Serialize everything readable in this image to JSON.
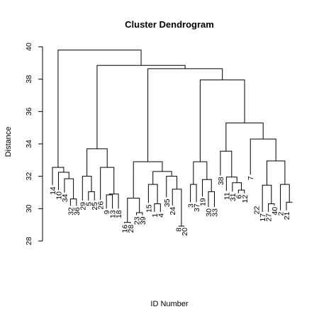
{
  "chart_data": {
    "type": "dendrogram",
    "title": "Cluster Dendrogram",
    "xlabel": "ID Number",
    "ylabel": "Distance",
    "ylim": [
      28,
      40
    ],
    "yticks": [
      28,
      30,
      32,
      34,
      36,
      38,
      40
    ],
    "ytick_labels": [
      "28",
      "30",
      "32",
      "34",
      "36",
      "38",
      "40"
    ],
    "leaf_order": [
      "14",
      "10",
      "34",
      "32",
      "36",
      "29",
      "5",
      "25",
      "26",
      "9",
      "13",
      "18",
      "16",
      "28",
      "23",
      "39",
      "15",
      "1",
      "4",
      "35",
      "24",
      "8",
      "20",
      "3",
      "37",
      "19",
      "30",
      "33",
      "38",
      "11",
      "31",
      "6",
      "12",
      "7",
      "22",
      "17",
      "27",
      "40",
      "2",
      "21"
    ],
    "leaf_heights": [
      31.45,
      31.15,
      31.0,
      30.18,
      30.18,
      30.5,
      30.5,
      30.5,
      30.55,
      30.0,
      30.0,
      30.0,
      29.1,
      29.1,
      29.6,
      29.6,
      30.35,
      29.8,
      29.8,
      30.7,
      30.2,
      28.92,
      28.92,
      30.4,
      30.4,
      30.75,
      30.1,
      30.1,
      32.05,
      31.1,
      31.05,
      30.95,
      30.95,
      32.1,
      30.25,
      29.8,
      29.8,
      30.2,
      29.9,
      29.9
    ],
    "merges": [
      [
        -22,
        -23,
        28.92
      ],
      [
        -13,
        -14,
        29.15
      ],
      [
        -15,
        -16,
        29.75
      ],
      [
        -18,
        -19,
        30.3
      ],
      [
        -37,
        -38,
        30.3
      ],
      [
        -4,
        -5,
        30.6
      ],
      [
        -10,
        -11,
        30.85
      ],
      [
        -27,
        -28,
        31.05
      ],
      [
        -40,
        -41,
        30.4
      ],
      [
        -32,
        -33,
        31.15
      ],
      [
        2,
        3,
        30.65
      ],
      [
        7,
        -12,
        30.9
      ],
      [
        -36,
        5,
        31.45
      ],
      [
        -26,
        8,
        31.8
      ],
      [
        -31,
        10,
        31.6
      ],
      [
        4,
        -17,
        31.5
      ],
      [
        -7,
        -8,
        31.05
      ],
      [
        -21,
        1,
        31.2
      ],
      [
        -30,
        15,
        31.95
      ],
      [
        -39,
        9,
        31.5
      ],
      [
        -3,
        6,
        31.85
      ],
      [
        -24,
        -25,
        31.5
      ],
      [
        -2,
        21,
        32.25
      ],
      [
        -20,
        18,
        32.0
      ],
      [
        -1,
        23,
        32.55
      ],
      [
        -6,
        17,
        32.0
      ],
      [
        -9,
        12,
        32.55
      ],
      [
        16,
        24,
        32.3
      ],
      [
        22,
        14,
        32.9
      ],
      [
        13,
        20,
        32.95
      ],
      [
        -29,
        19,
        33.55
      ],
      [
        11,
        28,
        32.9
      ],
      [
        26,
        27,
        33.7
      ],
      [
        -34,
        30,
        34.3
      ],
      [
        31,
        34,
        35.3
      ],
      [
        29,
        35,
        37.95
      ],
      [
        32,
        36,
        38.65
      ],
      [
        33,
        37,
        38.85
      ],
      [
        25,
        38,
        39.8
      ]
    ]
  }
}
